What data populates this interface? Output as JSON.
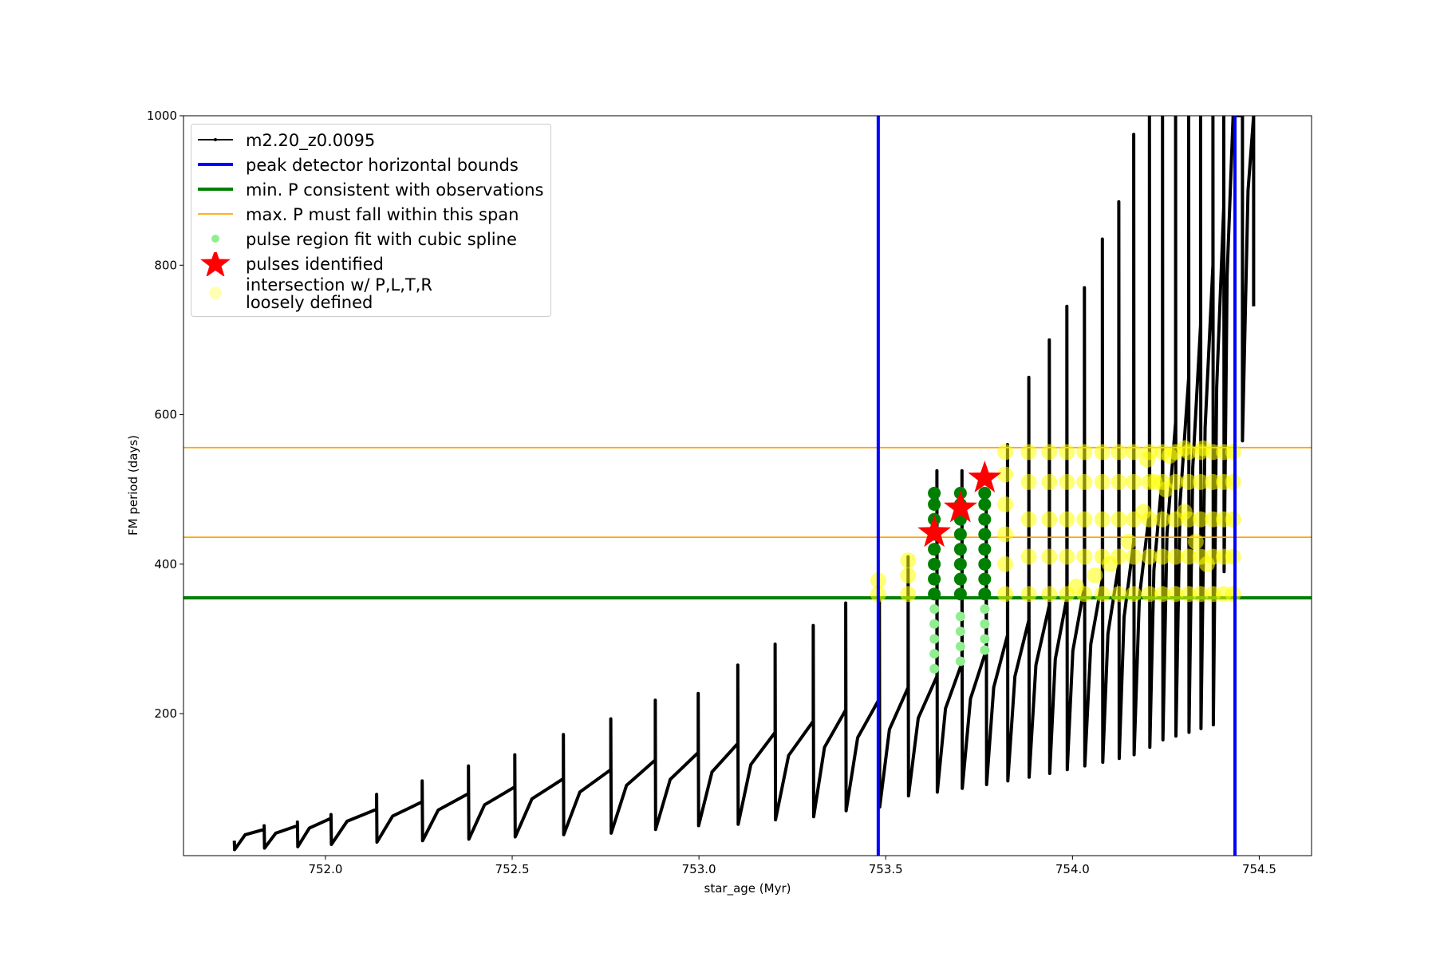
{
  "chart_data": {
    "type": "line",
    "xlabel": "star_age (Myr)",
    "ylabel": "FM period (days)",
    "xlim": [
      751.62,
      754.64
    ],
    "ylim": [
      10,
      1000
    ],
    "xticks": [
      {
        "value": 752,
        "label": "752.0"
      },
      752.5,
      {
        "value": 753,
        "label": "753.0"
      },
      753.5,
      {
        "value": 754,
        "label": "754.0"
      },
      754.5
    ],
    "yticks": [
      200,
      400,
      600,
      800,
      1000
    ],
    "legend": "upper left",
    "series": [
      {
        "name": "m2.20_z0.0095",
        "kind": "line",
        "color": "#000000",
        "x": [
          751.756,
          751.757,
          751.785,
          751.836,
          751.836,
          751.837,
          751.867,
          751.925,
          751.925,
          751.926,
          751.957,
          752.015,
          752.015,
          752.016,
          752.058,
          752.137,
          752.137,
          752.138,
          752.18,
          752.259,
          752.259,
          752.26,
          752.302,
          752.383,
          752.383,
          752.384,
          752.426,
          752.507,
          752.507,
          752.508,
          752.553,
          752.637,
          752.637,
          752.638,
          752.681,
          752.764,
          752.764,
          752.765,
          752.806,
          752.883,
          752.883,
          752.884,
          752.923,
          752.998,
          752.998,
          752.999,
          753.035,
          753.104,
          753.104,
          753.105,
          753.139,
          753.204,
          753.204,
          753.205,
          753.24,
          753.306,
          753.306,
          753.307,
          753.336,
          753.393,
          753.393,
          753.394,
          753.425,
          753.483,
          753.483,
          753.484,
          753.51,
          753.56,
          753.56,
          753.561,
          753.587,
          753.637,
          753.637,
          753.638,
          753.66,
          753.704,
          753.704,
          753.705,
          753.727,
          753.769,
          753.769,
          753.77,
          753.789,
          753.826,
          753.826,
          753.827,
          753.846,
          753.883,
          753.883,
          753.884,
          753.902,
          753.938,
          753.938,
          753.939,
          753.954,
          753.985,
          753.985,
          753.986,
          754.001,
          754.032,
          754.032,
          754.033,
          754.049,
          754.08,
          754.08,
          754.081,
          754.095,
          754.124,
          754.124,
          754.125,
          754.138,
          754.164,
          754.164,
          754.165,
          754.179,
          754.206,
          754.206,
          754.207,
          754.218,
          754.241,
          754.241,
          754.242,
          754.253,
          754.276,
          754.276,
          754.277,
          754.288,
          754.311,
          754.311,
          754.312,
          754.322,
          754.343,
          754.343,
          754.344,
          754.355,
          754.376,
          754.376,
          754.377,
          754.386,
          754.405,
          754.405,
          754.406,
          754.414,
          754.43,
          754.455,
          754.455,
          754.47,
          754.485,
          754.485
        ],
        "values": [
          30,
          18,
          38,
          45,
          50,
          20,
          40,
          50,
          55,
          22,
          47,
          60,
          65,
          25,
          56,
          72,
          92,
          28,
          63,
          82,
          110,
          30,
          71,
          93,
          130,
          32,
          78,
          102,
          145,
          35,
          86,
          113,
          172,
          38,
          95,
          125,
          193,
          40,
          104,
          138,
          218,
          45,
          112,
          148,
          227,
          50,
          122,
          160,
          265,
          52,
          132,
          175,
          293,
          58,
          144,
          190,
          318,
          62,
          155,
          205,
          348,
          70,
          168,
          220,
          355,
          75,
          179,
          235,
          410,
          90,
          194,
          250,
          525,
          95,
          207,
          268,
          525,
          100,
          220,
          285,
          495,
          105,
          235,
          305,
          560,
          110,
          250,
          325,
          650,
          115,
          265,
          345,
          700,
          120,
          273,
          355,
          745,
          125,
          284,
          370,
          770,
          130,
          293,
          380,
          835,
          135,
          307,
          400,
          885,
          140,
          329,
          430,
          975,
          145,
          356,
          470,
          1000,
          155,
          392,
          520,
          1000,
          165,
          441,
          590,
          1000,
          170,
          482,
          650,
          1000,
          175,
          529,
          720,
          1000,
          180,
          583,
          800,
          1000,
          185,
          637,
          880,
          1000,
          390,
          787,
          1000,
          1000,
          565,
          900,
          1000,
          745
        ]
      },
      {
        "name": "peak detector horizontal bounds",
        "kind": "vline",
        "color": "#0000ff",
        "x": [
          753.48,
          754.435
        ]
      },
      {
        "name": "min. P consistent with observations",
        "kind": "hline",
        "color": "#008000",
        "values": [
          355
        ]
      },
      {
        "name": "max. P must fall within this span",
        "kind": "hline",
        "color": "#ffa500",
        "values": [
          436,
          556
        ]
      },
      {
        "name": "pulse region fit with cubic spline",
        "kind": "scatter",
        "color": "#90ee90",
        "x": [
          753.63,
          753.63,
          753.63,
          753.63,
          753.63,
          753.7,
          753.7,
          753.7,
          753.7,
          753.765,
          753.765,
          753.765,
          753.765
        ],
        "values": [
          260,
          280,
          300,
          320,
          340,
          270,
          290,
          310,
          330,
          285,
          300,
          320,
          340
        ]
      },
      {
        "name": "pulses identified",
        "kind": "star",
        "color": "#ff0000",
        "x": [
          753.63,
          753.7,
          753.765
        ],
        "values": [
          442,
          475,
          515
        ]
      },
      {
        "name": "intersection w/ P,L,T,R\nloosely defined",
        "kind": "blob",
        "color": "#ffff00",
        "x": [
          753.48,
          753.48,
          753.56,
          753.56,
          753.56,
          753.82,
          753.82,
          753.82,
          753.82,
          753.82,
          753.82,
          753.883,
          753.883,
          753.883,
          753.883,
          753.883,
          753.938,
          753.938,
          753.938,
          753.938,
          753.938,
          753.985,
          753.985,
          753.985,
          753.985,
          753.985,
          754.032,
          754.032,
          754.032,
          754.032,
          754.032,
          754.08,
          754.08,
          754.08,
          754.08,
          754.08,
          754.124,
          754.124,
          754.124,
          754.124,
          754.124,
          754.164,
          754.164,
          754.164,
          754.164,
          754.164,
          754.206,
          754.206,
          754.206,
          754.206,
          754.206,
          754.241,
          754.241,
          754.241,
          754.241,
          754.241,
          754.276,
          754.276,
          754.276,
          754.276,
          754.276,
          754.311,
          754.311,
          754.311,
          754.311,
          754.311,
          754.343,
          754.343,
          754.343,
          754.343,
          754.343,
          754.376,
          754.376,
          754.376,
          754.376,
          754.376,
          754.405,
          754.405,
          754.405,
          754.405,
          754.405,
          754.43,
          754.43,
          754.43,
          754.43,
          754.43,
          754.01,
          754.06,
          754.1,
          754.15,
          754.19,
          754.22,
          754.26,
          754.3,
          754.35,
          754.2,
          754.25,
          754.3,
          754.33,
          754.36
        ],
        "values": [
          360,
          378,
          360,
          385,
          405,
          360,
          400,
          440,
          480,
          520,
          550,
          360,
          410,
          460,
          510,
          550,
          360,
          410,
          460,
          510,
          550,
          360,
          410,
          460,
          510,
          550,
          360,
          410,
          460,
          510,
          550,
          360,
          410,
          460,
          510,
          550,
          360,
          410,
          460,
          510,
          550,
          360,
          410,
          460,
          510,
          550,
          360,
          410,
          460,
          510,
          550,
          360,
          410,
          460,
          510,
          550,
          360,
          410,
          460,
          510,
          550,
          360,
          410,
          460,
          510,
          550,
          360,
          410,
          460,
          510,
          550,
          360,
          410,
          460,
          510,
          550,
          360,
          410,
          460,
          510,
          550,
          360,
          410,
          460,
          510,
          550,
          370,
          385,
          400,
          430,
          470,
          510,
          545,
          555,
          555,
          540,
          500,
          470,
          430,
          400
        ]
      },
      {
        "kind": "scatter",
        "color": "#008000",
        "x": [
          753.63,
          753.63,
          753.63,
          753.63,
          753.63,
          753.63,
          753.63,
          753.63,
          753.7,
          753.7,
          753.7,
          753.7,
          753.7,
          753.7,
          753.7,
          753.7,
          753.765,
          753.765,
          753.765,
          753.765,
          753.765,
          753.765,
          753.765,
          753.765
        ],
        "values": [
          360,
          380,
          400,
          420,
          440,
          460,
          480,
          495,
          360,
          380,
          400,
          420,
          440,
          460,
          480,
          495,
          360,
          380,
          400,
          420,
          440,
          460,
          480,
          495
        ]
      }
    ]
  }
}
